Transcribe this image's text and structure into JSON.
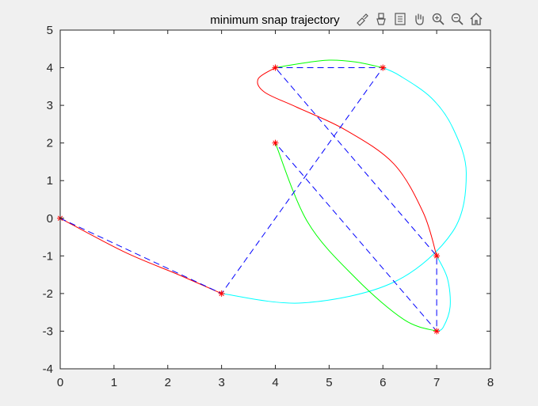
{
  "chart_data": {
    "type": "line",
    "title": "minimum snap trajectory",
    "xlabel": "",
    "ylabel": "",
    "xlim": [
      0,
      8
    ],
    "ylim": [
      -4,
      5
    ],
    "xticks": [
      "0",
      "1",
      "2",
      "3",
      "4",
      "5",
      "6",
      "7",
      "8"
    ],
    "yticks": [
      "-4",
      "-3",
      "-2",
      "-1",
      "0",
      "1",
      "2",
      "3",
      "4",
      "5"
    ],
    "grid": false,
    "waypoints": {
      "marker": "*",
      "color": "#ff0000",
      "x": [
        0,
        3,
        6,
        4,
        7,
        7,
        4
      ],
      "y": [
        0,
        -2,
        4,
        4,
        -1,
        -3,
        2
      ]
    },
    "waypoint_path": {
      "style": "dashed",
      "color": "#0000ff",
      "x": [
        0,
        3,
        6,
        4,
        7,
        7,
        4
      ],
      "y": [
        0,
        -2,
        4,
        4,
        -1,
        -3,
        2
      ]
    },
    "series": [
      {
        "color": "#ff0000",
        "x": [
          0,
          1.2,
          2.2,
          3
        ],
        "y": [
          0,
          -0.9,
          -1.5,
          -2
        ]
      },
      {
        "color": "#00ffff",
        "x": [
          3,
          4.5,
          6.2,
          7.3,
          7.55,
          7.3,
          6.9,
          6.3,
          6
        ],
        "y": [
          -2,
          -2.25,
          -1.7,
          -0.35,
          1.2,
          2.4,
          3.2,
          3.8,
          4
        ]
      },
      {
        "color": "#00ff00",
        "x": [
          6,
          5.5,
          5,
          4.5,
          4
        ],
        "y": [
          4,
          4.15,
          4.2,
          4.12,
          4
        ]
      },
      {
        "color": "#ff0000",
        "x": [
          4,
          3.68,
          3.8,
          4.4,
          5.3,
          6.2,
          6.75,
          7
        ],
        "y": [
          4,
          3.7,
          3.35,
          2.95,
          2.35,
          1.45,
          0.15,
          -1
        ]
      },
      {
        "color": "#00ffff",
        "x": [
          7,
          7.2,
          7.25,
          7.12,
          7
        ],
        "y": [
          -1,
          -1.6,
          -2.35,
          -2.9,
          -3
        ]
      },
      {
        "color": "#00ff00",
        "x": [
          7,
          6.4,
          5.5,
          4.6,
          4
        ],
        "y": [
          -3,
          -2.7,
          -1.6,
          -0.1,
          2
        ]
      }
    ]
  },
  "toolbar": {
    "icons": [
      "brush-data-icon",
      "clear-icon",
      "datatip-icon",
      "pan-icon",
      "zoom-in-icon",
      "zoom-out-icon",
      "home-icon"
    ]
  }
}
